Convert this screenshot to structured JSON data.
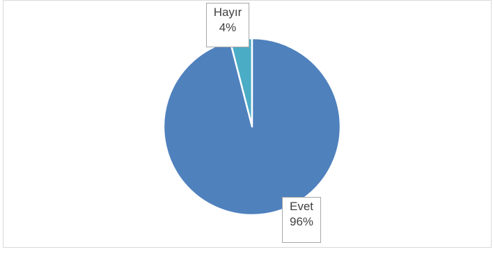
{
  "chart_data": {
    "type": "pie",
    "categories": [
      "Hayır",
      "Evet"
    ],
    "values": [
      4,
      96
    ],
    "labels": [
      "4%",
      "96%"
    ],
    "colors": [
      "#4bacc6",
      "#4f81bd"
    ],
    "legend": "none"
  }
}
